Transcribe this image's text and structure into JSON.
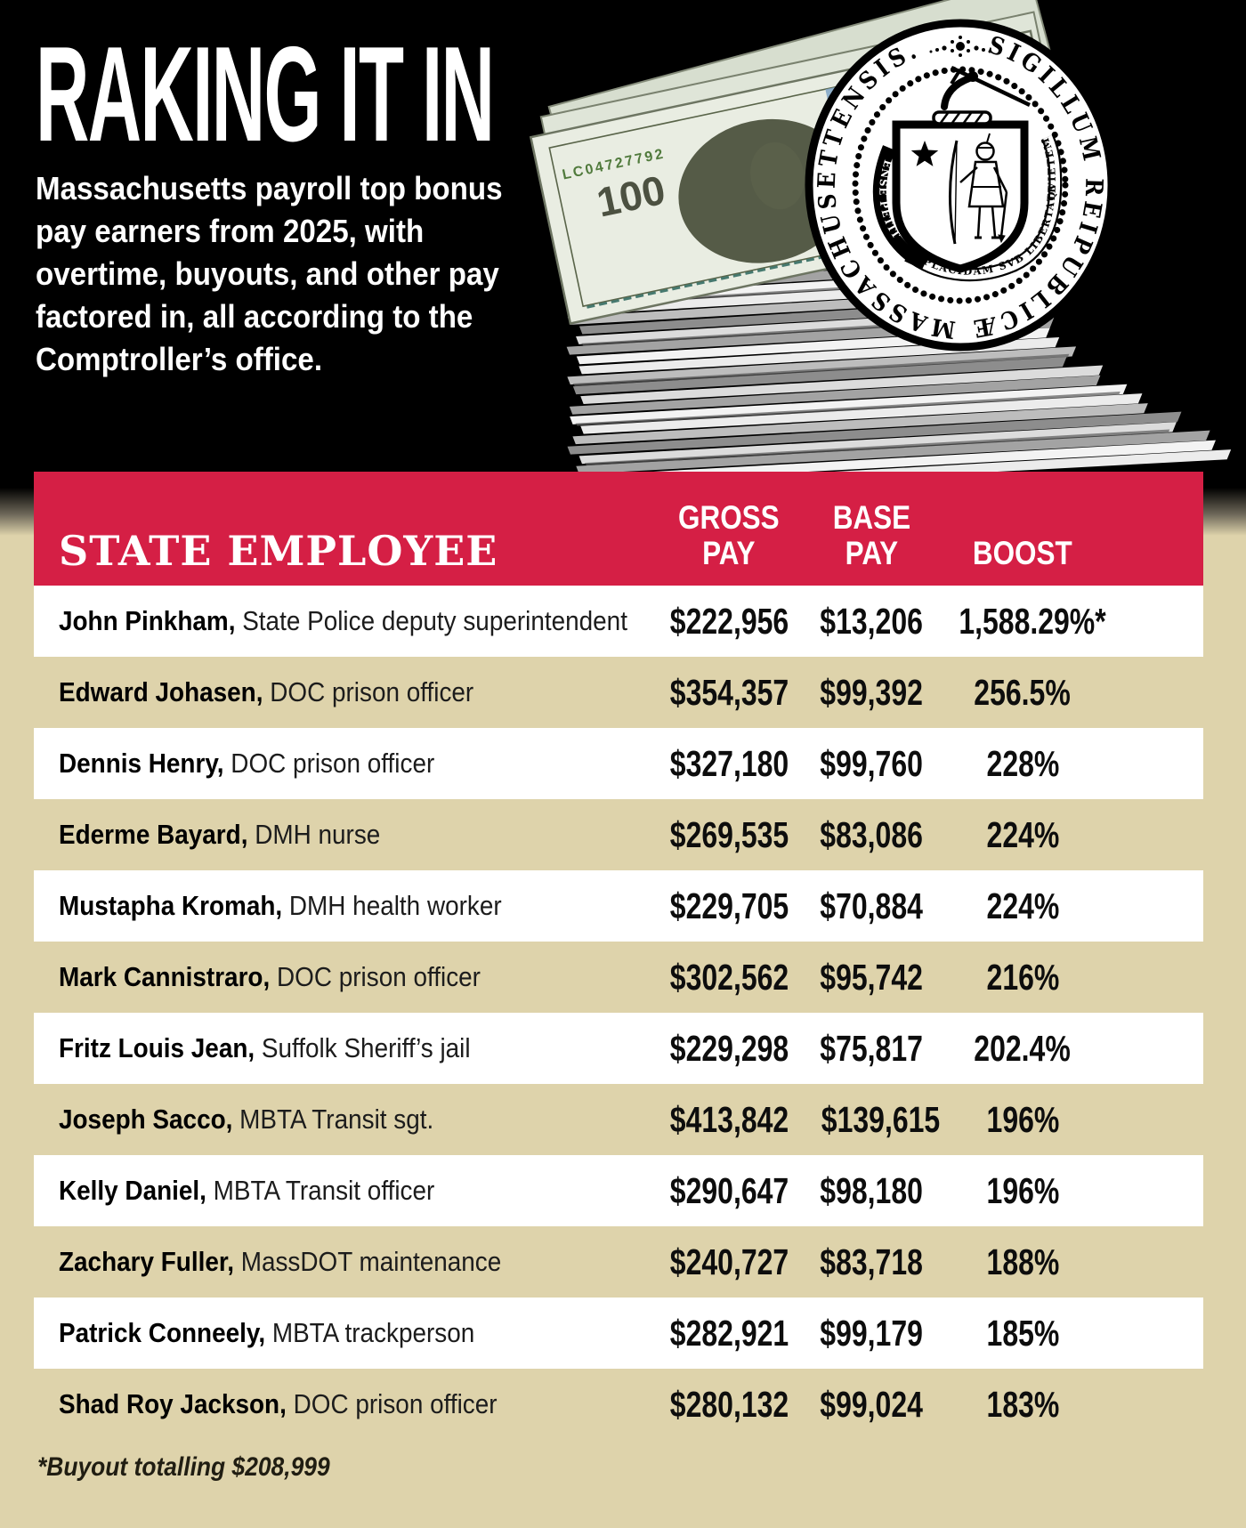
{
  "title": "RAKING IT IN",
  "intro_lines": [
    "Massachusetts payroll top bonus",
    "pay earners from 2025, with",
    "overtime, buyouts, and other pay",
    "factored in, all according to the",
    "Comptroller’s office."
  ],
  "chart_data": {
    "type": "table",
    "title": "RAKING IT IN",
    "columns": [
      "STATE EMPLOYEE",
      "GROSS PAY",
      "BASE PAY",
      "BOOST"
    ],
    "header": {
      "employee": "STATE EMPLOYEE",
      "gross_line1": "GROSS",
      "gross_line2": "PAY",
      "base_line1": "BASE",
      "base_line2": "PAY",
      "boost": "BOOST"
    },
    "separator": ", ",
    "rows": [
      {
        "name": "John Pinkham",
        "role": "State Police deputy superintendent",
        "gross_pay": "$222,956",
        "base_pay": "$13,206",
        "boost": "1,588.29%*"
      },
      {
        "name": "Edward Johasen",
        "role": "DOC prison officer",
        "gross_pay": "$354,357",
        "base_pay": "$99,392",
        "boost": "256.5%"
      },
      {
        "name": "Dennis Henry",
        "role": "DOC prison officer",
        "gross_pay": "$327,180",
        "base_pay": "$99,760",
        "boost": "228%"
      },
      {
        "name": "Ederme Bayard",
        "role": "DMH nurse",
        "gross_pay": "$269,535",
        "base_pay": "$83,086",
        "boost": "224%"
      },
      {
        "name": "Mustapha Kromah",
        "role": "DMH health worker",
        "gross_pay": "$229,705",
        "base_pay": "$70,884",
        "boost": "224%"
      },
      {
        "name": "Mark Cannistraro",
        "role": "DOC prison officer",
        "gross_pay": "$302,562",
        "base_pay": "$95,742",
        "boost": "216%"
      },
      {
        "name": "Fritz Louis Jean",
        "role": "Suffolk Sheriff’s jail",
        "gross_pay": "$229,298",
        "base_pay": "$75,817",
        "boost": "202.4%"
      },
      {
        "name": "Joseph Sacco",
        "role": "MBTA Transit sgt.",
        "gross_pay": "$413,842",
        "base_pay": "$139,615",
        "boost": "196%"
      },
      {
        "name": "Kelly Daniel",
        "role": "MBTA Transit officer",
        "gross_pay": "$290,647",
        "base_pay": "$98,180",
        "boost": "196%"
      },
      {
        "name": "Zachary Fuller",
        "role": "MassDOT maintenance",
        "gross_pay": "$240,727",
        "base_pay": "$83,718",
        "boost": "188%"
      },
      {
        "name": "Patrick Conneely",
        "role": "MBTA trackperson",
        "gross_pay": "$282,921",
        "base_pay": "$99,179",
        "boost": "185%"
      },
      {
        "name": "Shad Roy Jackson",
        "role": "DOC prison officer",
        "gross_pay": "$280,132",
        "base_pay": "$99,024",
        "boost": "183%"
      }
    ]
  },
  "footnote": "*Buyout totalling $208,999",
  "seal": {
    "ring_text": "SIGILLUM REIPUBLICÆ MASSACHUSETTENSIS.",
    "motto_parts": {
      "p1": "ENSE PETIT",
      "p2": "PLACIDAM",
      "p3": "SVB LIBERTATE",
      "p4": "QVIETEM"
    }
  },
  "money": {
    "denomination": "100",
    "serial": "LC04727792"
  },
  "colors": {
    "header_red": "#d51f45",
    "background_black": "#000000",
    "background_tan": "#ded3ab",
    "row_white": "#ffffff",
    "text_black": "#0d0d0d"
  }
}
